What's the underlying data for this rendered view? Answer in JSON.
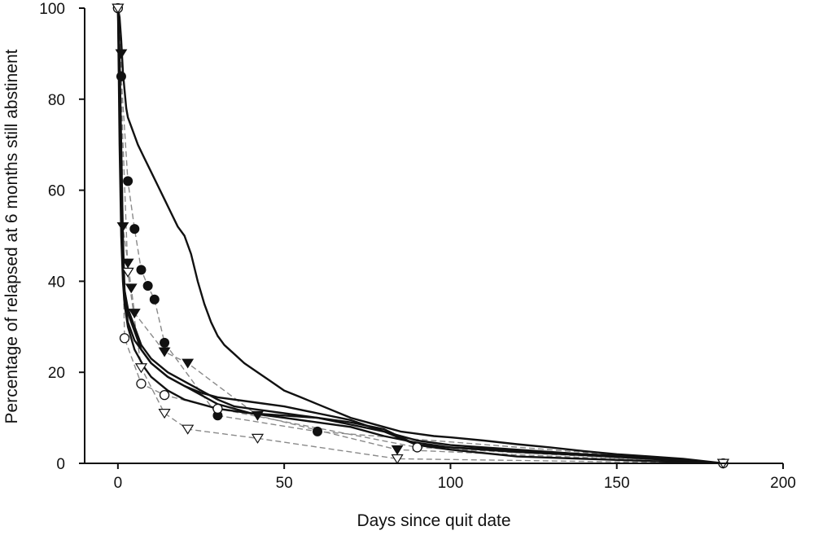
{
  "chart_data": {
    "type": "line",
    "title": "",
    "xlabel": "Days since quit date",
    "ylabel": "Percentage of relapsed at 6 months still abstinent",
    "xlim": [
      -10,
      200
    ],
    "ylim": [
      0,
      100
    ],
    "x_ticks": [
      "0",
      "50",
      "100",
      "150",
      "200"
    ],
    "y_ticks": [
      "0",
      "20",
      "40",
      "60",
      "80",
      "100"
    ],
    "grid": false,
    "legend": "none",
    "series": [
      {
        "style": "solid",
        "color": "#111111",
        "points": [
          [
            0,
            100
          ],
          [
            0.5,
            98
          ],
          [
            1,
            93
          ],
          [
            1.5,
            86
          ],
          [
            2,
            82
          ],
          [
            2.5,
            78
          ],
          [
            3,
            76
          ],
          [
            4,
            74
          ],
          [
            5,
            72
          ],
          [
            6,
            70
          ],
          [
            8,
            67
          ],
          [
            10,
            64
          ],
          [
            12,
            61
          ],
          [
            14,
            58
          ],
          [
            16,
            55
          ],
          [
            18,
            52
          ],
          [
            20,
            50
          ],
          [
            22,
            46
          ],
          [
            24,
            40
          ],
          [
            26,
            35
          ],
          [
            28,
            31
          ],
          [
            30,
            28
          ],
          [
            32,
            26
          ],
          [
            35,
            24
          ],
          [
            38,
            22
          ],
          [
            42,
            20
          ],
          [
            46,
            18
          ],
          [
            50,
            16
          ],
          [
            55,
            14.5
          ],
          [
            60,
            13
          ],
          [
            65,
            11.5
          ],
          [
            70,
            10
          ],
          [
            75,
            9
          ],
          [
            80,
            8
          ],
          [
            85,
            7
          ],
          [
            90,
            6.5
          ],
          [
            95,
            6
          ],
          [
            100,
            5.7
          ],
          [
            110,
            5
          ],
          [
            120,
            4.2
          ],
          [
            130,
            3.5
          ],
          [
            140,
            2.7
          ],
          [
            150,
            2
          ],
          [
            160,
            1.5
          ],
          [
            170,
            1
          ],
          [
            182,
            0
          ]
        ]
      },
      {
        "style": "solid",
        "color": "#111111",
        "points": [
          [
            0,
            100
          ],
          [
            0.5,
            90
          ],
          [
            1,
            70
          ],
          [
            1.5,
            50
          ],
          [
            2,
            38
          ],
          [
            3,
            34
          ],
          [
            5,
            30
          ],
          [
            7,
            26
          ],
          [
            10,
            23
          ],
          [
            15,
            20
          ],
          [
            20,
            18
          ],
          [
            25,
            16
          ],
          [
            30,
            14
          ],
          [
            35,
            12.5
          ],
          [
            40,
            12
          ],
          [
            45,
            11.5
          ],
          [
            50,
            11
          ],
          [
            55,
            10.5
          ],
          [
            60,
            10
          ],
          [
            70,
            8.5
          ],
          [
            80,
            7
          ],
          [
            90,
            4
          ],
          [
            100,
            3.5
          ],
          [
            120,
            2.8
          ],
          [
            140,
            2
          ],
          [
            160,
            1.4
          ],
          [
            182,
            0
          ]
        ]
      },
      {
        "style": "solid",
        "color": "#111111",
        "points": [
          [
            0,
            100
          ],
          [
            0.5,
            85
          ],
          [
            1,
            60
          ],
          [
            1.5,
            45
          ],
          [
            2,
            38
          ],
          [
            3,
            33
          ],
          [
            5,
            29
          ],
          [
            7,
            25
          ],
          [
            10,
            22
          ],
          [
            15,
            19
          ],
          [
            20,
            17
          ],
          [
            25,
            15.5
          ],
          [
            30,
            14.5
          ],
          [
            35,
            14
          ],
          [
            40,
            13.5
          ],
          [
            50,
            12.5
          ],
          [
            60,
            11
          ],
          [
            70,
            9.5
          ],
          [
            80,
            7
          ],
          [
            90,
            5
          ],
          [
            100,
            4
          ],
          [
            120,
            3
          ],
          [
            140,
            2
          ],
          [
            160,
            1.2
          ],
          [
            182,
            0
          ]
        ]
      },
      {
        "style": "solid",
        "color": "#111111",
        "points": [
          [
            0,
            100
          ],
          [
            0.5,
            70
          ],
          [
            1,
            50
          ],
          [
            1.5,
            40
          ],
          [
            2,
            35
          ],
          [
            3,
            30
          ],
          [
            5,
            25
          ],
          [
            8,
            21
          ],
          [
            10,
            19
          ],
          [
            15,
            16
          ],
          [
            20,
            14
          ],
          [
            30,
            12
          ],
          [
            40,
            11
          ],
          [
            50,
            10
          ],
          [
            60,
            9
          ],
          [
            70,
            8
          ],
          [
            80,
            6
          ],
          [
            90,
            4.5
          ],
          [
            100,
            3.5
          ],
          [
            120,
            2.5
          ],
          [
            140,
            1.8
          ],
          [
            160,
            1
          ],
          [
            182,
            0
          ]
        ]
      },
      {
        "style": "solid",
        "color": "#111111",
        "points": [
          [
            0,
            100
          ],
          [
            0.5,
            80
          ],
          [
            1,
            55
          ],
          [
            1.5,
            42
          ],
          [
            2,
            36
          ],
          [
            3,
            31
          ],
          [
            5,
            27
          ],
          [
            8,
            24
          ],
          [
            10,
            22
          ],
          [
            15,
            19
          ],
          [
            20,
            17
          ],
          [
            25,
            15
          ],
          [
            30,
            13
          ],
          [
            35,
            12
          ],
          [
            40,
            11
          ],
          [
            50,
            10.5
          ],
          [
            60,
            10
          ],
          [
            70,
            9
          ],
          [
            80,
            7.5
          ],
          [
            90,
            4
          ],
          [
            100,
            3
          ],
          [
            120,
            1.5
          ],
          [
            140,
            1
          ],
          [
            160,
            0.5
          ],
          [
            182,
            0
          ]
        ]
      },
      {
        "style": "dashed",
        "color": "#8a8a8a",
        "marker": "filled-circle",
        "points": [
          [
            0,
            100
          ],
          [
            1,
            85
          ],
          [
            3,
            62
          ],
          [
            5,
            51.5
          ],
          [
            7,
            42.5
          ],
          [
            9,
            39
          ],
          [
            11,
            36
          ],
          [
            14,
            26.5
          ],
          [
            30,
            10.5
          ],
          [
            60,
            7
          ],
          [
            182,
            0
          ]
        ]
      },
      {
        "style": "dashed",
        "color": "#8a8a8a",
        "marker": "filled-triangle-down",
        "points": [
          [
            0,
            100
          ],
          [
            1,
            90
          ],
          [
            1.5,
            52
          ],
          [
            3,
            44
          ],
          [
            4,
            38.5
          ],
          [
            5,
            33
          ],
          [
            14,
            24.5
          ],
          [
            21,
            22
          ],
          [
            42,
            10.5
          ],
          [
            84,
            3
          ],
          [
            182,
            0
          ]
        ]
      },
      {
        "style": "dashed",
        "color": "#8a8a8a",
        "marker": "open-circle",
        "points": [
          [
            0,
            100
          ],
          [
            2,
            27.5
          ],
          [
            7,
            17.5
          ],
          [
            14,
            15
          ],
          [
            30,
            12
          ],
          [
            90,
            3.5
          ],
          [
            182,
            0
          ]
        ]
      },
      {
        "style": "dashed",
        "color": "#8a8a8a",
        "marker": "open-triangle-down",
        "points": [
          [
            0,
            100
          ],
          [
            3,
            42
          ],
          [
            7,
            21
          ],
          [
            14,
            11
          ],
          [
            21,
            7.5
          ],
          [
            42,
            5.5
          ],
          [
            84,
            1
          ],
          [
            182,
            0
          ]
        ]
      }
    ]
  }
}
